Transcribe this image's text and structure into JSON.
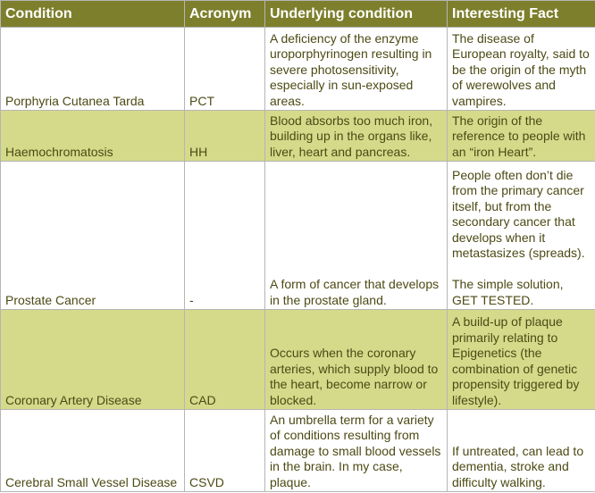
{
  "table": {
    "header": [
      "Condition",
      "Acronym",
      "Underlying condition",
      "Interesting Fact"
    ],
    "rows": [
      [
        "Porphyria Cutanea Tarda",
        "PCT",
        "A deficiency of the enzyme uroporphyrinogen resulting in severe photosensitivity, especially in sun-exposed areas.",
        "The disease of European royalty, said to be the origin of the myth of werewolves and vampires."
      ],
      [
        "Haemochromatosis",
        "HH",
        "Blood absorbs too much iron, building up in the organs like, liver, heart and pancreas.",
        "The origin of the reference to people with an “iron Heart”."
      ],
      [
        "Prostate Cancer",
        "-",
        "A form of cancer that develops in the prostate gland.",
        "People often don’t die from the primary cancer itself, but from the secondary cancer that develops when it metastasizes (spreads).\n\nThe simple solution, GET TESTED."
      ],
      [
        "Coronary Artery Disease",
        "CAD",
        "Occurs when the coronary arteries, which supply blood to the heart, become narrow or blocked.",
        "A build-up of plaque primarily relating to Epigenetics (the combination of genetic propensity triggered by lifestyle)."
      ],
      [
        "Cerebral Small Vessel Disease",
        "CSVD",
        "An umbrella term for a variety of conditions resulting from damage to small blood vessels in the brain. In my case, plaque.",
        "If untreated, can lead to dementia, stroke and difficulty walking."
      ]
    ]
  }
}
